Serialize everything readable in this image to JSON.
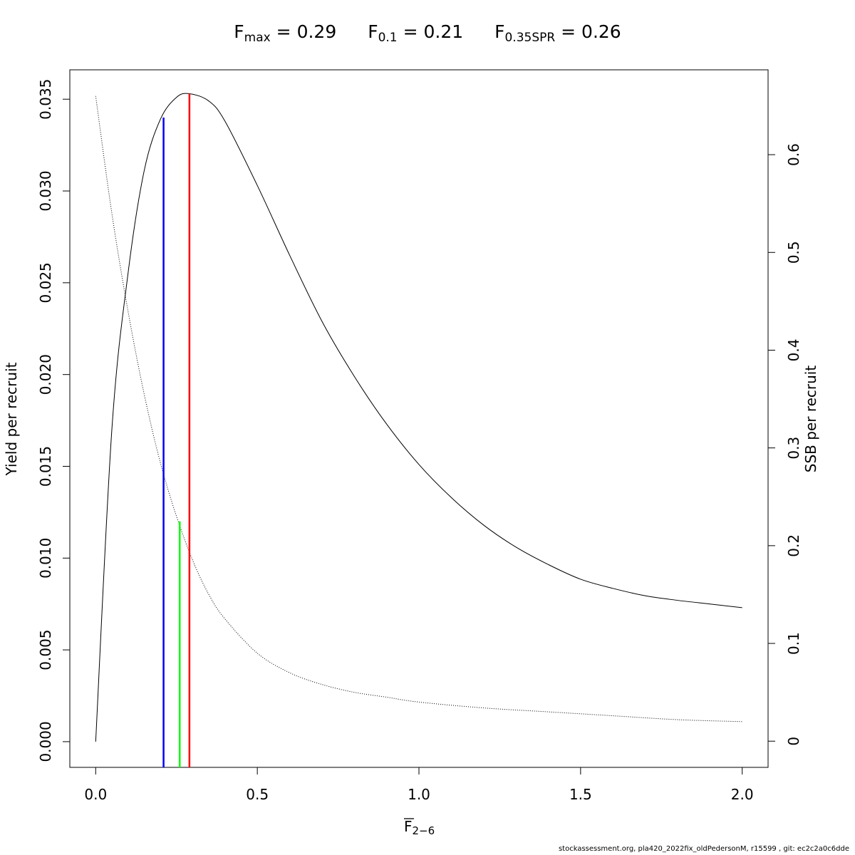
{
  "header": {
    "items": [
      {
        "symbol": "F",
        "subscript": "max",
        "value": "= 0.29"
      },
      {
        "symbol": "F",
        "subscript": "0.1",
        "value": "= 0.21"
      },
      {
        "symbol": "F",
        "subscript": "0.35SPR",
        "value": "= 0.26"
      }
    ]
  },
  "footer": {
    "text": "stockassessment.org, pla420_2022fix_oldPedersonM, r15599 , git: ec2c2a0c6dde"
  },
  "chart_data": {
    "type": "line",
    "xlabel_symbol": "F",
    "xlabel_subscript": "2−6",
    "ylabel": "Yield per recruit",
    "y2label": "SSB per recruit",
    "xlim": [
      -0.08,
      2.08
    ],
    "ylim": [
      -0.0014,
      0.0366
    ],
    "y2lim": [
      -0.0268,
      0.6868
    ],
    "x_ticks": [
      "0.0",
      "0.5",
      "1.0",
      "1.5",
      "2.0"
    ],
    "y_ticks": [
      "0.000",
      "0.005",
      "0.010",
      "0.015",
      "0.020",
      "0.025",
      "0.030",
      "0.035"
    ],
    "y2_ticks": [
      "0",
      "0.1",
      "0.2",
      "0.3",
      "0.4",
      "0.5",
      "0.6"
    ],
    "grid": false,
    "series": [
      {
        "style": "solid",
        "axis": "left",
        "x": [
          0.0,
          0.05,
          0.1,
          0.15,
          0.2,
          0.25,
          0.29,
          0.35,
          0.4,
          0.5,
          0.6,
          0.7,
          0.8,
          0.9,
          1.0,
          1.1,
          1.2,
          1.3,
          1.4,
          1.5,
          1.6,
          1.7,
          1.8,
          1.9,
          2.0
        ],
        "values": [
          0.0,
          0.017,
          0.0255,
          0.0311,
          0.0339,
          0.0351,
          0.0353,
          0.0349,
          0.0338,
          0.0303,
          0.0265,
          0.0229,
          0.0199,
          0.0173,
          0.0151,
          0.0133,
          0.0118,
          0.0106,
          0.00965,
          0.00885,
          0.00835,
          0.00795,
          0.0077,
          0.0075,
          0.0073
        ]
      },
      {
        "style": "dotted",
        "axis": "right",
        "x": [
          0.0,
          0.05,
          0.1,
          0.15,
          0.2,
          0.25,
          0.3,
          0.35,
          0.4,
          0.5,
          0.6,
          0.7,
          0.8,
          0.9,
          1.0,
          1.2,
          1.4,
          1.6,
          1.8,
          2.0
        ],
        "values": [
          0.66,
          0.54,
          0.44,
          0.355,
          0.285,
          0.23,
          0.185,
          0.15,
          0.125,
          0.09,
          0.07,
          0.058,
          0.05,
          0.045,
          0.04,
          0.034,
          0.03,
          0.026,
          0.022,
          0.02
        ]
      }
    ],
    "reference_lines": [
      {
        "name": "F0.1",
        "color": "#0000ff",
        "x": 0.21,
        "y": 0.034
      },
      {
        "name": "F0.35SPR",
        "color": "#00ff00",
        "x": 0.26,
        "y": 0.012
      },
      {
        "name": "Fmax",
        "color": "#ff0000",
        "x": 0.29,
        "y": 0.0353
      }
    ]
  }
}
